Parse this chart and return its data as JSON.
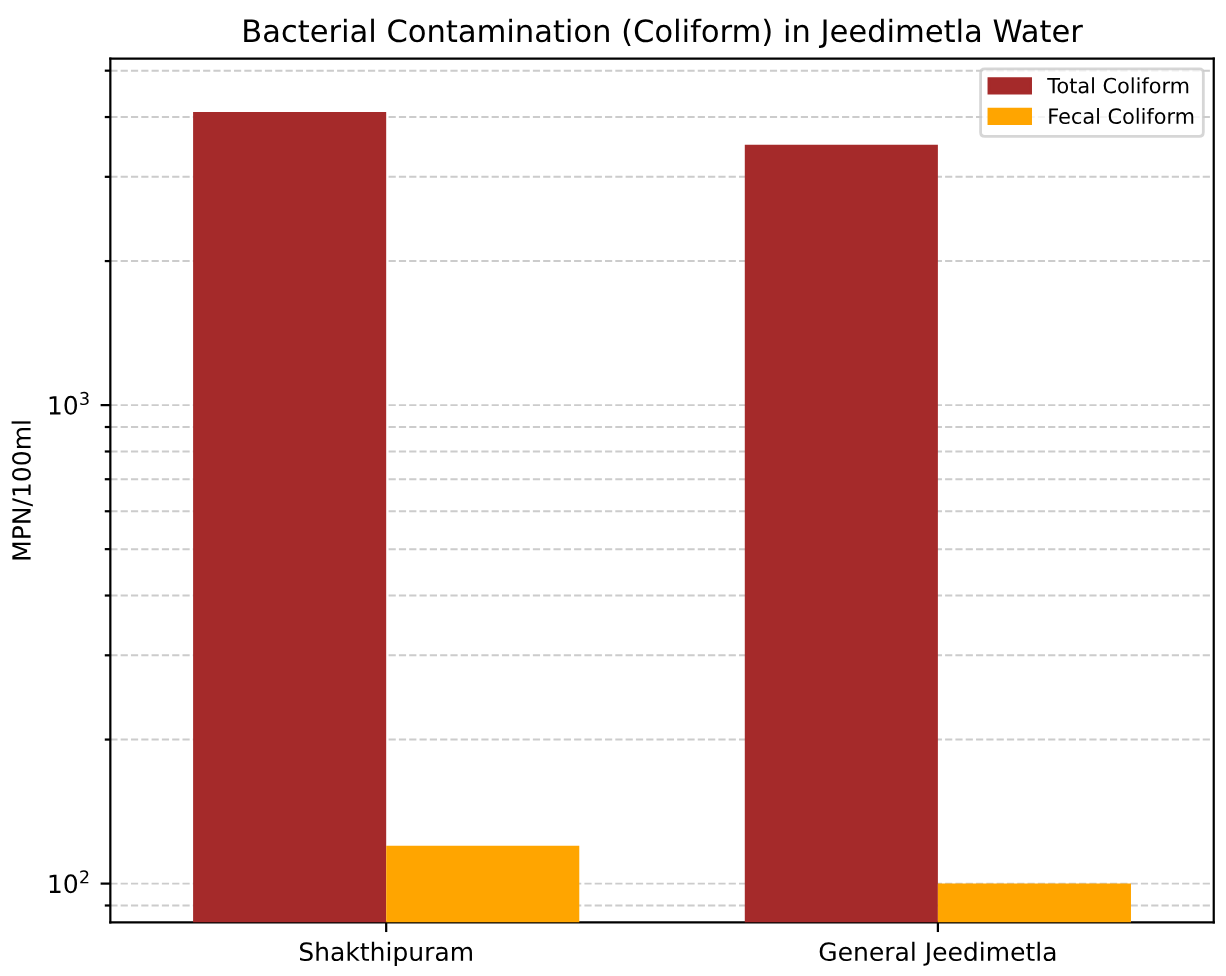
{
  "chart_data": {
    "type": "bar",
    "title": "Bacterial Contamination (Coliform) in Jeedimetla Water",
    "ylabel": "MPN/100ml",
    "categories": [
      "Shakthipuram",
      "General Jeedimetla"
    ],
    "series": [
      {
        "name": "Total Coliform",
        "color": "#a52a2a",
        "values": [
          4100,
          3500
        ]
      },
      {
        "name": "Fecal Coliform",
        "color": "#ffa500",
        "values": [
          120,
          100
        ]
      }
    ],
    "log": "y",
    "ylim": [
      83,
      5300
    ],
    "yticks": [
      {
        "value": 90,
        "label": null
      },
      {
        "value": 100,
        "label": "10$^{2}$"
      },
      {
        "value": 200,
        "label": null
      },
      {
        "value": 300,
        "label": null
      },
      {
        "value": 400,
        "label": null
      },
      {
        "value": 500,
        "label": null
      },
      {
        "value": 600,
        "label": null
      },
      {
        "value": 700,
        "label": null
      },
      {
        "value": 800,
        "label": null
      },
      {
        "value": 900,
        "label": null
      },
      {
        "value": 1000,
        "label": "10$^{3}$"
      },
      {
        "value": 2000,
        "label": null
      },
      {
        "value": 3000,
        "label": null
      },
      {
        "value": 4000,
        "label": null
      },
      {
        "value": 5000,
        "label": null
      }
    ],
    "grid": "y",
    "legend": "top right"
  }
}
